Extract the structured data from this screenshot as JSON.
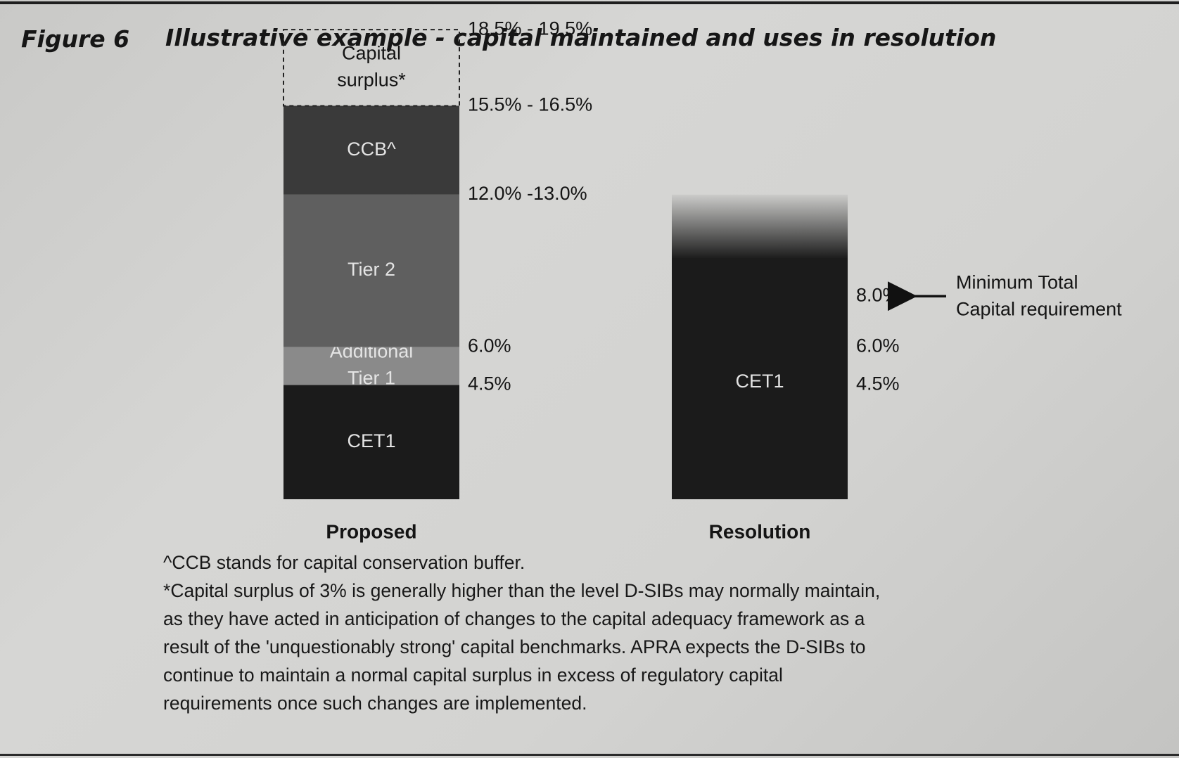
{
  "figure": {
    "label": "Figure 6",
    "title": "Illustrative example - capital maintained and uses in resolution"
  },
  "chart_data": {
    "type": "bar",
    "stacked": true,
    "title": "Illustrative example - capital maintained and uses in resolution",
    "ylabel": "",
    "xlabel": "",
    "ylim": [
      0,
      19.5
    ],
    "categories": [
      "Proposed",
      "Resolution"
    ],
    "bars": [
      {
        "category": "Proposed",
        "segments": [
          {
            "name": "CET1",
            "label": "CET1",
            "from": 0,
            "to": 4.5,
            "color": "#1b1b1b"
          },
          {
            "name": "Additional Tier 1",
            "label_lines": [
              "Additional",
              "Tier 1"
            ],
            "from": 4.5,
            "to": 6.0,
            "color": "#8a8a8a"
          },
          {
            "name": "Tier 2",
            "label": "Tier 2",
            "from": 6.0,
            "to": 12.0,
            "color": "#5f5f5f"
          },
          {
            "name": "CCB^",
            "label": "CCB^",
            "from": 12.0,
            "to": 15.5,
            "color": "#3a3a3a"
          },
          {
            "name": "Capital surplus*",
            "label_lines": [
              "Capital",
              "surplus*"
            ],
            "from": 15.5,
            "to": 18.5,
            "color": "none",
            "dashed": true
          }
        ],
        "level_labels": [
          {
            "value": 18.5,
            "text": "18.5% - 19.5%"
          },
          {
            "value": 15.5,
            "text": "15.5% - 16.5%"
          },
          {
            "value": 12.0,
            "text": "12.0% -13.0%"
          },
          {
            "value": 6.0,
            "text": "6.0%"
          },
          {
            "value": 4.5,
            "text": "4.5%"
          }
        ]
      },
      {
        "category": "Resolution",
        "segments": [
          {
            "name": "CET1",
            "label": "CET1",
            "from": 0,
            "to": 12.0,
            "color": "#1b1b1b",
            "fade_above": 9.5
          }
        ],
        "level_labels": [
          {
            "value": 8.0,
            "text": "8.0%"
          },
          {
            "value": 6.0,
            "text": "6.0%"
          },
          {
            "value": 4.5,
            "text": "4.5%"
          }
        ],
        "annotation": {
          "value": 8.0,
          "lines": [
            "Minimum Total",
            "Capital requirement"
          ]
        }
      }
    ]
  },
  "footnotes": {
    "ccb": "^CCB stands for capital conservation buffer.",
    "surplus_lines": [
      "*Capital surplus of 3% is generally higher than the level D-SIBs may normally maintain,",
      "as they have acted in anticipation of changes to the capital adequacy framework as a",
      "result of the 'unquestionably strong' capital benchmarks. APRA expects the D-SIBs to",
      "continue to maintain a normal capital surplus in excess of regulatory capital",
      "requirements once such changes are implemented."
    ]
  }
}
